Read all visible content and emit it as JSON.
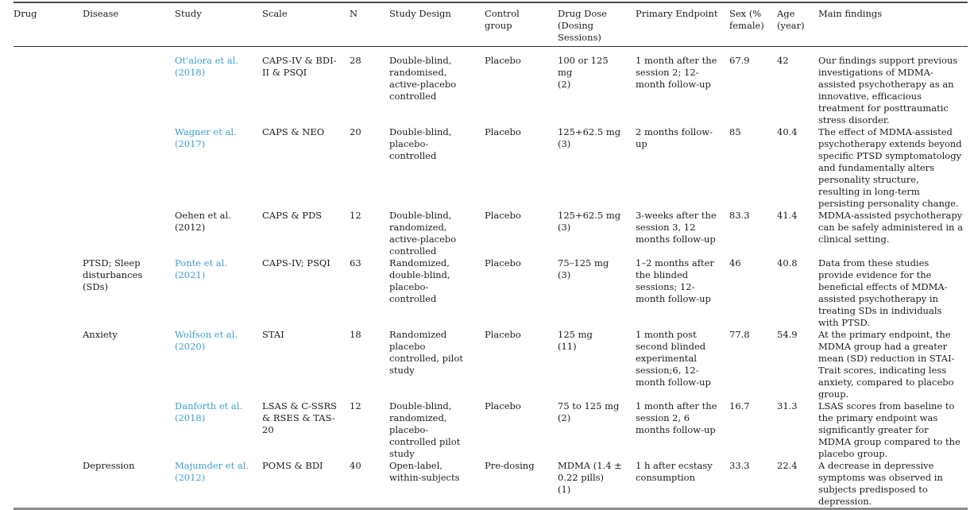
{
  "page": {
    "link_color": "#3d9fd3",
    "text_color": "#1c1c1c",
    "top_rule_color": "#4a4a4a",
    "bottom_rule_color": "#8d8d8d"
  },
  "table": {
    "headers": [
      "Drug",
      "Disease",
      "Study",
      "Scale",
      "N",
      "Study Design",
      "Control group",
      "Drug Dose (Dosing Sessions)",
      "Primary Endpoint",
      "Sex (% female)",
      "Age (year)",
      "Main findings"
    ],
    "rows": [
      {
        "drug": "",
        "disease": "",
        "study": "Ot'alora et al. (2018)",
        "study_is_link": true,
        "scale": "CAPS-IV & BDI-II & PSQI",
        "n": "28",
        "design": "Double-blind, randomised, active-placebo controlled",
        "control": "Placebo",
        "dose": "100 or 125 mg",
        "sessions": "(2)",
        "endpoint": "1 month after the session 2; 12-month follow-up",
        "sex": "67.9",
        "age": "42",
        "findings": "Our findings support previous investigations of MDMA-assisted psychotherapy as an innovative, efficacious treatment for posttraumatic stress disorder."
      },
      {
        "drug": "",
        "disease": "",
        "study": "Wagner et al. (2017)",
        "study_is_link": true,
        "scale": "CAPS & NEO",
        "n": "20",
        "design": "Double-blind, placebo-controlled",
        "control": "Placebo",
        "dose": "125+62.5 mg",
        "sessions": "(3)",
        "endpoint": "2 months follow-up",
        "sex": "85",
        "age": "40.4",
        "findings": "The effect of MDMA-assisted psychotherapy extends beyond specific PTSD symptomatology and fundamentally alters personality structure, resulting in long-term persisting personality change."
      },
      {
        "drug": "",
        "disease": "",
        "study": "Oehen et al. (2012)",
        "study_is_link": false,
        "scale": "CAPS & PDS",
        "n": "12",
        "design": "Double-blind, randomized, active-placebo controlled",
        "control": "Placebo",
        "dose": "125+62.5 mg",
        "sessions": "(3)",
        "endpoint": "3-weeks after the session 3, 12 months follow-up",
        "sex": "83.3",
        "age": "41.4",
        "findings": "MDMA-assisted psychotherapy can be safely administered in a clinical setting."
      },
      {
        "drug": "",
        "disease": "PTSD; Sleep disturbances (SDs)",
        "study": "Ponte et al. (2021)",
        "study_is_link": true,
        "scale": "CAPS-IV; PSQI",
        "n": "63",
        "design": "Randomized, double-blind, placebo-controlled",
        "control": "Placebo",
        "dose": "75–125 mg",
        "sessions": "(3)",
        "endpoint": "1–2 months after the blinded sessions; 12-month follow-up",
        "sex": "46",
        "age": "40.8",
        "findings": "Data from these studies provide evidence for the beneficial effects of MDMA-assisted psychotherapy in treating SDs in individuals with PTSD."
      },
      {
        "drug": "",
        "disease": "Anxiety",
        "study": "Wolfson et al. (2020)",
        "study_is_link": true,
        "scale": "STAI",
        "n": "18",
        "design": "Randomized placebo controlled, pilot study",
        "control": "Placebo",
        "dose": "125 mg",
        "sessions": "(11)",
        "endpoint": "1 month post second blinded experimental session;6, 12-month follow-up",
        "sex": "77.8",
        "age": "54.9",
        "findings": "At the primary endpoint, the MDMA group had a greater mean (SD) reduction in STAI-Trait scores, indicating less anxiety, compared to placebo group."
      },
      {
        "drug": "",
        "disease": "",
        "study": "Danforth et al. (2018)",
        "study_is_link": true,
        "scale": "LSAS & C-SSRS & RSES & TAS-20",
        "n": "12",
        "design": "Double-blind, randomized, placebo-controlled pilot study",
        "control": "Placebo",
        "dose": "75 to 125 mg",
        "sessions": "(2)",
        "endpoint": "1 month after the session 2, 6 months follow-up",
        "sex": "16.7",
        "age": "31.3",
        "findings": "LSAS scores from baseline to the primary endpoint was significantly greater for MDMA group compared to the placebo group."
      },
      {
        "drug": "",
        "disease": "Depression",
        "study": "Majumder et al. (2012)",
        "study_is_link": true,
        "scale": "POMS & BDI",
        "n": "40",
        "design": "Open-label, within-subjects",
        "control": "Pre-dosing",
        "dose": "MDMA (1.4 ± 0.22 pills)",
        "sessions": "(1)",
        "endpoint": "1 h after ecstasy consumption",
        "sex": "33.3",
        "age": "22.4",
        "findings": "A decrease in depressive symptoms was observed in subjects predisposed to depression."
      }
    ]
  }
}
